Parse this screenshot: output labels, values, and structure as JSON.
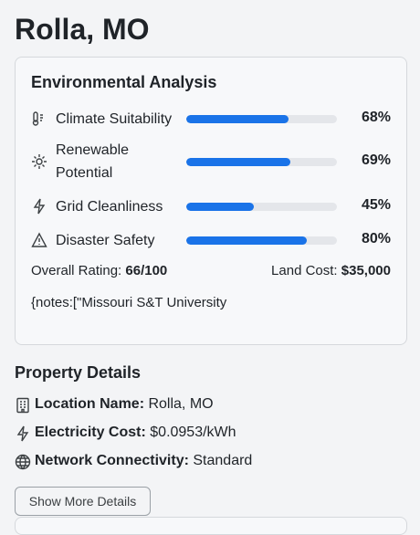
{
  "header": {
    "title": "Rolla, MO"
  },
  "environmental_analysis": {
    "title": "Environmental Analysis",
    "metrics": [
      {
        "label": "Climate Suitability",
        "value": 68,
        "value_label": "68%"
      },
      {
        "label": "Renewable Potential",
        "value": 69,
        "value_label": "69%"
      },
      {
        "label": "Grid Cleanliness",
        "value": 45,
        "value_label": "45%"
      },
      {
        "label": "Disaster Safety",
        "value": 80,
        "value_label": "80%"
      }
    ],
    "overall_rating": {
      "label": "Overall Rating:",
      "value": "66/100"
    },
    "land_cost": {
      "label": "Land Cost:",
      "value": "$35,000"
    },
    "notes": "{notes:[\"Missouri S&T University"
  },
  "property_details": {
    "title": "Property Details",
    "rows": [
      {
        "label": "Location Name:",
        "value": "Rolla, MO"
      },
      {
        "label": "Electricity Cost:",
        "value": "$0.0953/kWh"
      },
      {
        "label": "Network Connectivity:",
        "value": "Standard"
      }
    ],
    "button": "Show More Details"
  }
}
